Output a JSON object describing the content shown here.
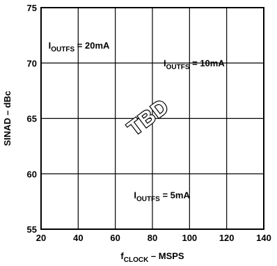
{
  "chart_data": {
    "type": "line",
    "title": "",
    "xlabel": {
      "main": "f",
      "sub": "CLOCK",
      "rest": " – MSPS"
    },
    "ylabel": "SINAD – dBc",
    "xlim": [
      20,
      140
    ],
    "ylim": [
      55,
      75
    ],
    "xticks": [
      20,
      40,
      60,
      80,
      100,
      120,
      140
    ],
    "yticks": [
      55,
      60,
      65,
      70,
      75
    ],
    "grid": true,
    "series": [],
    "annotations": [
      {
        "main": "I",
        "sub": "OUTFS",
        "rest": " = 20mA",
        "x": 24,
        "y": 71.3
      },
      {
        "main": "I",
        "sub": "OUTFS",
        "rest": " = 10mA",
        "x": 86,
        "y": 69.7
      },
      {
        "main": "I",
        "sub": "OUTFS",
        "rest": " = 5mA",
        "x": 70,
        "y": 57.8
      }
    ],
    "watermark": {
      "text": "TBD",
      "x": 80,
      "y": 64.6,
      "angle": -37
    }
  }
}
